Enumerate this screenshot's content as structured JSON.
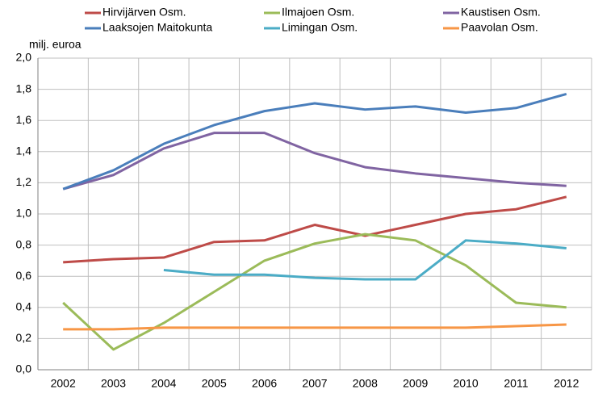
{
  "chart_data": {
    "type": "line",
    "y_label": "milj. euroa",
    "categories": [
      "2002",
      "2003",
      "2004",
      "2005",
      "2006",
      "2007",
      "2008",
      "2009",
      "2010",
      "2011",
      "2012"
    ],
    "series": [
      {
        "name": "Hirvijärven Osm.",
        "color": "#be4b48",
        "values": [
          0.69,
          0.71,
          0.72,
          0.82,
          0.83,
          0.93,
          0.86,
          0.93,
          1.0,
          1.03,
          1.11
        ]
      },
      {
        "name": "Ilmajoen Osm.",
        "color": "#9bbb59",
        "values": [
          0.43,
          0.13,
          0.3,
          0.5,
          0.7,
          0.81,
          0.87,
          0.83,
          0.67,
          0.43,
          0.4
        ]
      },
      {
        "name": "Kaustisen Osm.",
        "color": "#8064a2",
        "values": [
          1.16,
          1.25,
          1.42,
          1.52,
          1.52,
          1.39,
          1.3,
          1.26,
          1.23,
          1.2,
          1.18
        ]
      },
      {
        "name": "Laaksojen Maitokunta",
        "color": "#4a7ebb",
        "values": [
          1.16,
          1.28,
          1.45,
          1.57,
          1.66,
          1.71,
          1.67,
          1.69,
          1.65,
          1.68,
          1.77
        ]
      },
      {
        "name": "Limingan Osm.",
        "color": "#4bacc6",
        "values": [
          null,
          null,
          0.64,
          0.61,
          0.61,
          0.59,
          0.58,
          0.58,
          0.83,
          0.81,
          0.78
        ]
      },
      {
        "name": "Paavolan Osm.",
        "color": "#f79646",
        "values": [
          0.26,
          0.26,
          0.27,
          0.27,
          0.27,
          0.27,
          0.27,
          0.27,
          0.27,
          0.28,
          0.29
        ]
      }
    ],
    "ylim": [
      0,
      2.0
    ],
    "yticks": [
      {
        "value": 0,
        "label": "0,0"
      },
      {
        "value": 0.2,
        "label": "0,2"
      },
      {
        "value": 0.4,
        "label": "0,4"
      },
      {
        "value": 0.6,
        "label": "0,6"
      },
      {
        "value": 0.8,
        "label": "0,8"
      },
      {
        "value": 1.0,
        "label": "1,0"
      },
      {
        "value": 1.2,
        "label": "1,2"
      },
      {
        "value": 1.4,
        "label": "1,4"
      },
      {
        "value": 1.6,
        "label": "1,6"
      },
      {
        "value": 1.8,
        "label": "1,8"
      },
      {
        "value": 2.0,
        "label": "2,0"
      }
    ],
    "grid": true
  }
}
